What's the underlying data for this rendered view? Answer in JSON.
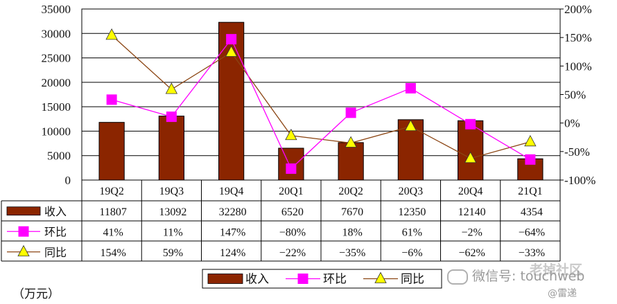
{
  "chart_data": {
    "type": "bar+line",
    "categories": [
      "19Q2",
      "19Q3",
      "19Q4",
      "20Q1",
      "20Q2",
      "20Q3",
      "20Q4",
      "21Q1"
    ],
    "series": [
      {
        "name": "收入",
        "kind": "bar",
        "axis": "left",
        "values": [
          11807,
          13092,
          32280,
          6520,
          7670,
          12350,
          12140,
          4354
        ],
        "labels": [
          "11807",
          "13092",
          "32280",
          "6520",
          "7670",
          "12350",
          "12140",
          "4354"
        ],
        "color": "#8b2500"
      },
      {
        "name": "环比",
        "kind": "line",
        "axis": "right",
        "marker": "square",
        "values": [
          41,
          11,
          147,
          -80,
          18,
          61,
          -2,
          -64
        ],
        "labels": [
          "41%",
          "11%",
          "147%",
          "−80%",
          "18%",
          "61%",
          "−2%",
          "−64%"
        ],
        "color": "#ff00ff"
      },
      {
        "name": "同比",
        "kind": "line",
        "axis": "right",
        "marker": "triangle",
        "values": [
          154,
          59,
          124,
          -22,
          -35,
          -6,
          -62,
          -33
        ],
        "labels": [
          "154%",
          "59%",
          "124%",
          "−22%",
          "−35%",
          "−6%",
          "−62%",
          "−33%"
        ],
        "color": "#8b4513",
        "marker_color": "#ffff00"
      }
    ],
    "left_axis": {
      "ylim": [
        0,
        35000
      ],
      "ticks": [
        "0",
        "5000",
        "10000",
        "15000",
        "20000",
        "25000",
        "30000",
        "35000"
      ]
    },
    "right_axis": {
      "ylim": [
        -100,
        200
      ],
      "ticks": [
        "-100%",
        "-50%",
        "0%",
        "50%",
        "100%",
        "150%",
        "200%"
      ]
    },
    "grid": true,
    "legend": {
      "placement": "bottom",
      "entries": [
        "收入",
        "环比",
        "同比"
      ]
    },
    "unit_label": "（万元）"
  },
  "watermark": {
    "main": "微信号: touchweb",
    "top": "老掉社区",
    "sub": "@雷递"
  }
}
